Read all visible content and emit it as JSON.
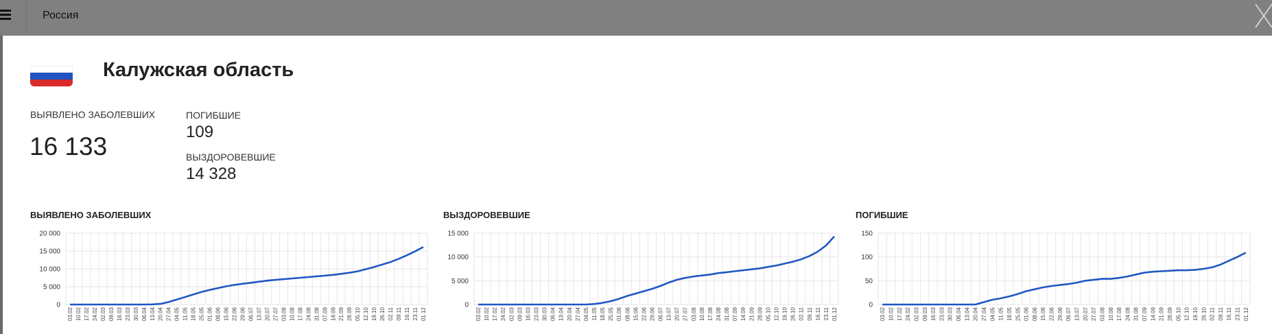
{
  "header": {
    "tab_label": "Россия",
    "menu_icon": "hamburger-icon",
    "close_icon": "close-icon"
  },
  "region": {
    "flag_icon": "russia-flag-icon",
    "title": "Калужская область"
  },
  "stats": {
    "cases_label": "ВЫЯВЛЕНО ЗАБОЛЕВШИХ",
    "cases_value": "16 133",
    "deaths_label": "ПОГИБШИЕ",
    "deaths_value": "109",
    "recovered_label": "ВЫЗДОРОВЕВШИЕ",
    "recovered_value": "14 328"
  },
  "colors": {
    "line": "#1f57c3",
    "grid": "#e6e6e6"
  },
  "chart_data": [
    {
      "type": "line",
      "title": "ВЫЯВЛЕНО ЗАБОЛЕВШИХ",
      "ylim": [
        0,
        20000
      ],
      "yticks": [
        "0",
        "5 000",
        "10 000",
        "15 000",
        "20 000"
      ],
      "categories": [
        "03.02",
        "10.02",
        "17.02",
        "24.02",
        "02.03",
        "09.03",
        "16.03",
        "23.03",
        "30.03",
        "06.04",
        "13.04",
        "20.04",
        "27.04",
        "04.05",
        "11.05",
        "18.05",
        "25.05",
        "01.06",
        "08.06",
        "15.06",
        "22.06",
        "29.06",
        "06.07",
        "13.07",
        "20.07",
        "27.07",
        "03.08",
        "10.08",
        "17.08",
        "24.08",
        "31.08",
        "07.09",
        "14.09",
        "21.09",
        "28.09",
        "05.10",
        "12.10",
        "19.10",
        "26.10",
        "02.11",
        "09.11",
        "16.11",
        "23.11",
        "01.12"
      ],
      "series": [
        {
          "values": [
            0,
            0,
            0,
            0,
            0,
            0,
            0,
            0,
            0,
            0,
            30,
            180,
            700,
            1400,
            2100,
            2800,
            3500,
            4100,
            4600,
            5100,
            5500,
            5800,
            6100,
            6400,
            6700,
            6900,
            7100,
            7300,
            7500,
            7700,
            7900,
            8100,
            8300,
            8600,
            8900,
            9300,
            9900,
            10500,
            11200,
            11900,
            12800,
            13800,
            14900,
            16133
          ]
        }
      ],
      "grid": true
    },
    {
      "type": "line",
      "title": "ВЫЗДОРОВЕВШИЕ",
      "ylim": [
        0,
        15000
      ],
      "yticks": [
        "0",
        "5 000",
        "10 000",
        "15 000"
      ],
      "categories": [
        "03.02",
        "10.02",
        "17.02",
        "24.02",
        "02.03",
        "09.03",
        "16.03",
        "23.03",
        "30.03",
        "06.04",
        "13.04",
        "20.04",
        "27.04",
        "04.05",
        "11.05",
        "18.05",
        "25.05",
        "01.06",
        "08.06",
        "15.06",
        "22.06",
        "29.06",
        "06.07",
        "13.07",
        "20.07",
        "27.07",
        "03.08",
        "10.08",
        "17.08",
        "24.08",
        "31.08",
        "07.09",
        "14.09",
        "21.09",
        "28.09",
        "05.10",
        "12.10",
        "19.10",
        "26.10",
        "02.11",
        "09.11",
        "16.11",
        "23.11",
        "01.12"
      ],
      "series": [
        {
          "values": [
            0,
            0,
            0,
            0,
            0,
            0,
            0,
            0,
            0,
            0,
            0,
            0,
            0,
            0,
            100,
            350,
            700,
            1200,
            1800,
            2300,
            2800,
            3300,
            3900,
            4600,
            5200,
            5600,
            5900,
            6100,
            6300,
            6600,
            6800,
            7000,
            7200,
            7400,
            7600,
            7900,
            8200,
            8600,
            9000,
            9500,
            10200,
            11100,
            12400,
            14328
          ]
        }
      ],
      "grid": true
    },
    {
      "type": "line",
      "title": "ПОГИБШИЕ",
      "ylim": [
        0,
        150
      ],
      "yticks": [
        "0",
        "50",
        "100",
        "150"
      ],
      "categories": [
        "03.02",
        "10.02",
        "17.02",
        "24.02",
        "02.03",
        "09.03",
        "16.03",
        "23.03",
        "30.03",
        "06.04",
        "13.04",
        "20.04",
        "27.04",
        "04.05",
        "11.05",
        "18.05",
        "25.05",
        "01.06",
        "08.06",
        "15.06",
        "22.06",
        "29.06",
        "06.07",
        "13.07",
        "20.07",
        "27.07",
        "03.08",
        "10.08",
        "17.08",
        "24.08",
        "31.08",
        "07.09",
        "14.09",
        "21.09",
        "28.09",
        "05.10",
        "12.10",
        "19.10",
        "26.10",
        "02.11",
        "09.11",
        "16.11",
        "23.11",
        "01.12"
      ],
      "series": [
        {
          "values": [
            0,
            0,
            0,
            0,
            0,
            0,
            0,
            0,
            0,
            0,
            0,
            0,
            5,
            10,
            13,
            17,
            22,
            28,
            32,
            36,
            39,
            41,
            43,
            46,
            50,
            52,
            54,
            54,
            56,
            59,
            63,
            67,
            69,
            70,
            71,
            72,
            72,
            73,
            75,
            78,
            84,
            92,
            100,
            109
          ]
        }
      ],
      "grid": true
    }
  ]
}
